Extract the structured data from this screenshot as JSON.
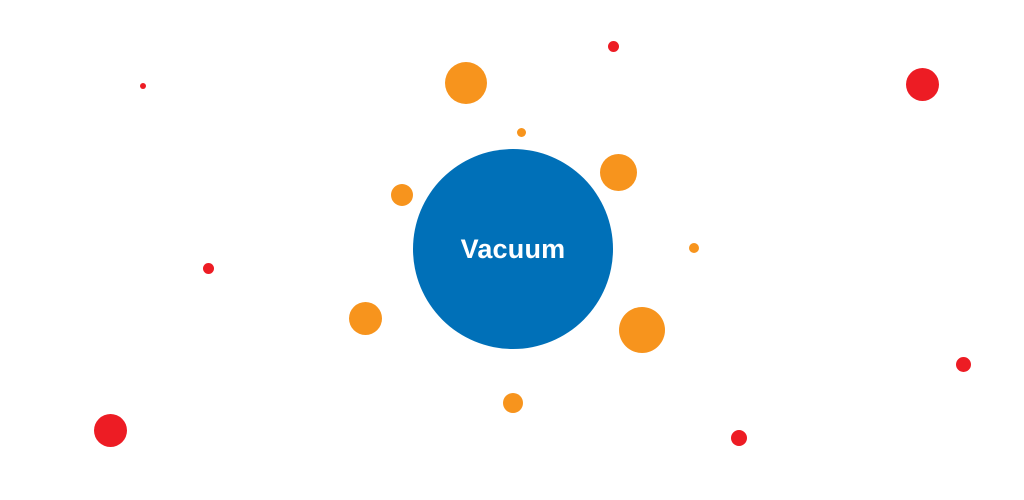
{
  "colors": {
    "center": "#0070b8",
    "orange": "#f7941d",
    "red": "#ed1c24",
    "background": "#ffffff"
  },
  "center": {
    "label": "Vacuum"
  },
  "particles": {
    "orange_count": 8,
    "red_count": 7
  }
}
